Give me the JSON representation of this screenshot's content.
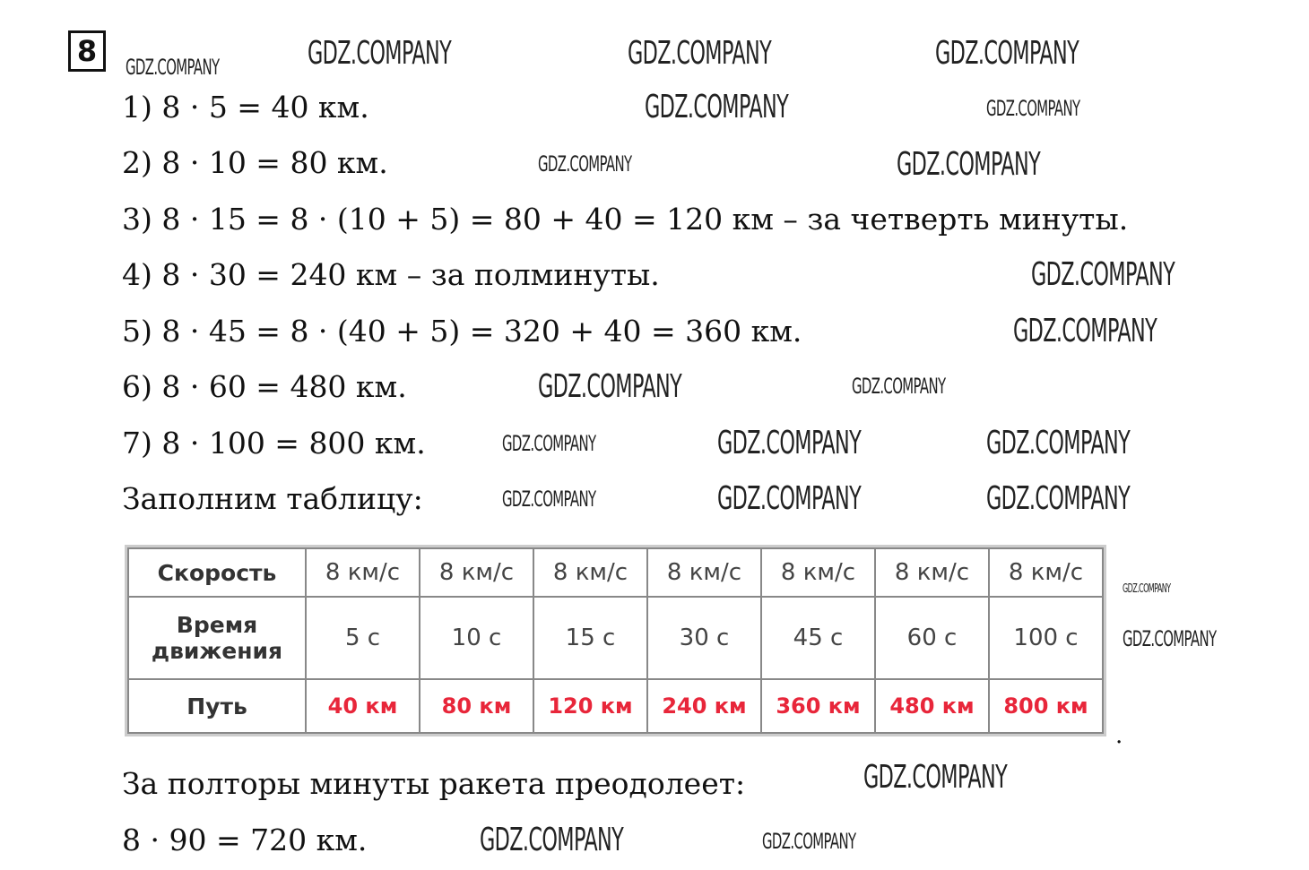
{
  "task_number": "8",
  "lines": [
    "1) 8 · 5 = 40 км.",
    "2) 8 · 10 = 80 км.",
    "3) 8 · 15 = 8 · (10 + 5) = 80 + 40 = 120 км – за четверть минуты.",
    "4) 8 · 30 = 240 км – за полминуты.",
    "5) 8 · 45 = 8 · (40 + 5) = 320 + 40 = 360 км.",
    "6) 8 · 60 = 480 км.",
    "7) 8 · 100 = 800 км.",
    "Заполним таблицу:"
  ],
  "table": {
    "row_headers": [
      "Скорость",
      "Время движения",
      "Путь"
    ],
    "speed": [
      "8 км/с",
      "8 км/с",
      "8 км/с",
      "8 км/с",
      "8 км/с",
      "8 км/с",
      "8 км/с"
    ],
    "time": [
      "5 с",
      "10 с",
      "15 с",
      "30 с",
      "45 с",
      "60 с",
      "100 с"
    ],
    "distance": [
      "40 км",
      "80 км",
      "120 км",
      "240 км",
      "360 км",
      "480 км",
      "800 км"
    ],
    "distance_color": "#e8263a"
  },
  "trailing_dot": ".",
  "conclusion": "За полторы минуты ракета преодолеет:",
  "answer": "8 · 90 = 720 км.",
  "watermark": "GDZ.COMPANY"
}
